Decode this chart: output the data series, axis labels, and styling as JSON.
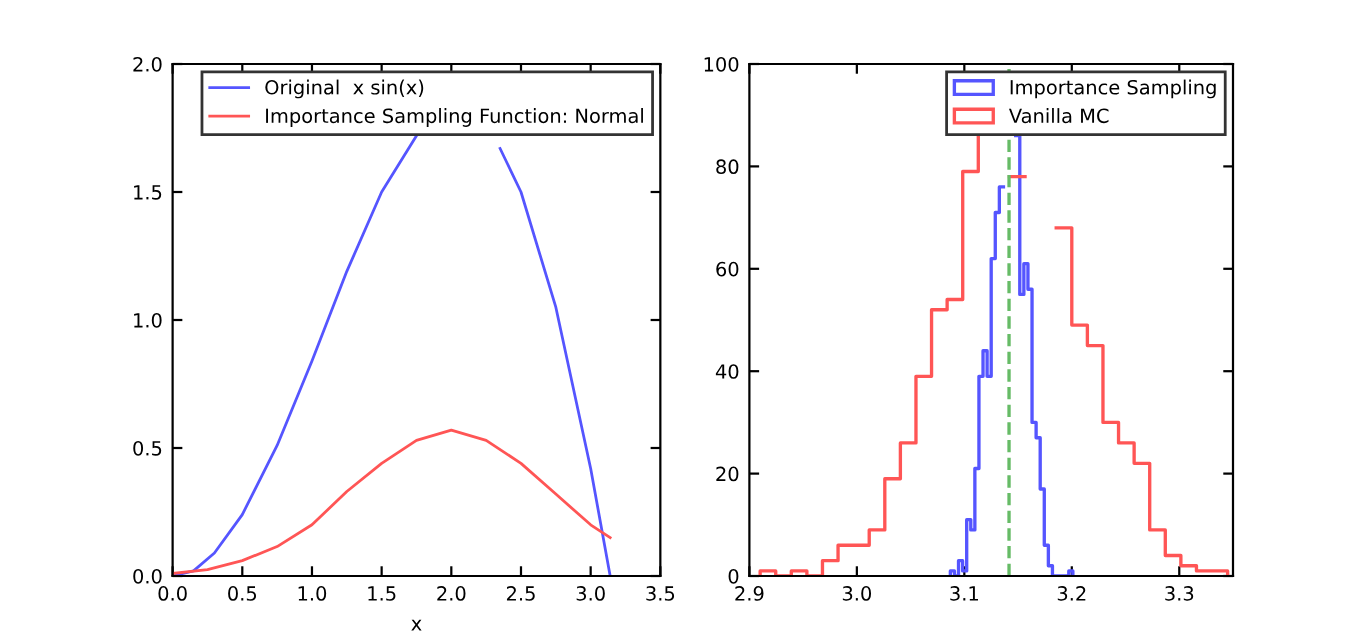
{
  "chart_data": [
    {
      "type": "line",
      "xlabel": "x",
      "xlim": [
        0,
        3.5
      ],
      "xticks": [
        {
          "value": 0,
          "label": "0.0"
        },
        0.5,
        {
          "value": 1,
          "label": "1.0"
        },
        1.5,
        {
          "value": 2,
          "label": "2.0"
        },
        2.5,
        {
          "value": 3,
          "label": "3.0"
        },
        3.5
      ],
      "ylim": [
        0,
        2
      ],
      "yticks": [
        {
          "value": 0,
          "label": "0.0"
        },
        0.5,
        {
          "value": 1,
          "label": "1.0"
        },
        1.5,
        {
          "value": 2,
          "label": "2.0"
        }
      ],
      "legend": "top right",
      "line_style": "solid",
      "marker": "none",
      "series": [
        {
          "name": "Original  x sin(x)",
          "color": "#5555ff",
          "x": [
            0,
            0.15,
            0.3,
            0.5,
            0.75,
            1.0,
            1.25,
            1.5,
            1.75,
            2.0,
            2.35,
            2.5,
            2.75,
            3.0,
            3.14
          ],
          "values": [
            0,
            0.02,
            0.09,
            0.24,
            0.51,
            0.84,
            1.19,
            1.5,
            1.72,
            null,
            1.67,
            1.5,
            1.05,
            0.42,
            0
          ]
        },
        {
          "name": "Importance Sampling Function: Normal",
          "color": "#ff5555",
          "x": [
            0,
            0.25,
            0.5,
            0.75,
            1.0,
            1.25,
            1.5,
            1.75,
            2.0,
            2.25,
            2.5,
            2.75,
            3.0,
            3.14
          ],
          "values": [
            0.01,
            0.025,
            0.06,
            0.115,
            0.2,
            0.33,
            0.44,
            0.53,
            0.57,
            0.53,
            0.44,
            0.32,
            0.2,
            0.15
          ]
        }
      ]
    },
    {
      "type": "step",
      "xlim": [
        2.9,
        3.35
      ],
      "xticks": [
        2.9,
        {
          "value": 3.0,
          "label": "3.0"
        },
        3.1,
        3.2,
        3.3
      ],
      "ylim": [
        0,
        100
      ],
      "yticks": [
        0,
        20,
        40,
        60,
        80,
        100
      ],
      "legend": "top right",
      "ref_lines": [
        {
          "axis": "x",
          "value": 3.1416,
          "color": "#66bb66",
          "line_style": "dashed"
        }
      ],
      "series": [
        {
          "name": "Importance Sampling",
          "color": "#5555ff",
          "x": [
            3.087,
            3.087,
            3.0908,
            3.0946,
            3.0984,
            3.1022,
            3.106,
            3.1098,
            3.1136,
            3.1174,
            3.1212,
            3.125,
            3.1288,
            3.1326,
            3.1364,
            3.1402,
            3.144,
            3.1478,
            3.1516,
            3.1554,
            3.1592,
            3.163,
            3.1668,
            3.1706,
            3.1744,
            3.1782,
            3.182,
            3.1858,
            3.1896,
            3.1934,
            3.1972,
            3.201
          ],
          "values": [
            0,
            1,
            0,
            3,
            1,
            11,
            9,
            21,
            39,
            44,
            39,
            62,
            71,
            76,
            null,
            null,
            null,
            86,
            55,
            61,
            56,
            30,
            27,
            17,
            6,
            2,
            0,
            0,
            0,
            0,
            1,
            0
          ]
        },
        {
          "name": "Vanilla MC",
          "color": "#ff5555",
          "x": [
            2.91,
            2.91,
            2.9245,
            2.939,
            2.9535,
            2.968,
            2.9825,
            2.997,
            3.0115,
            3.026,
            3.0405,
            3.055,
            3.0695,
            3.084,
            3.0985,
            3.113,
            3.1275,
            3.142,
            3.1565,
            3.171,
            3.1855,
            3.2,
            3.2145,
            3.229,
            3.2435,
            3.258,
            3.2725,
            3.287,
            3.3015,
            3.316,
            3.3305,
            3.345
          ],
          "values": [
            0,
            1,
            0,
            1,
            0,
            3,
            6,
            6,
            9,
            19,
            26,
            39,
            52,
            54,
            79,
            92,
            null,
            78,
            null,
            null,
            68,
            49,
            45,
            30,
            26,
            22,
            9,
            4,
            2,
            1,
            1,
            0
          ]
        }
      ]
    }
  ]
}
